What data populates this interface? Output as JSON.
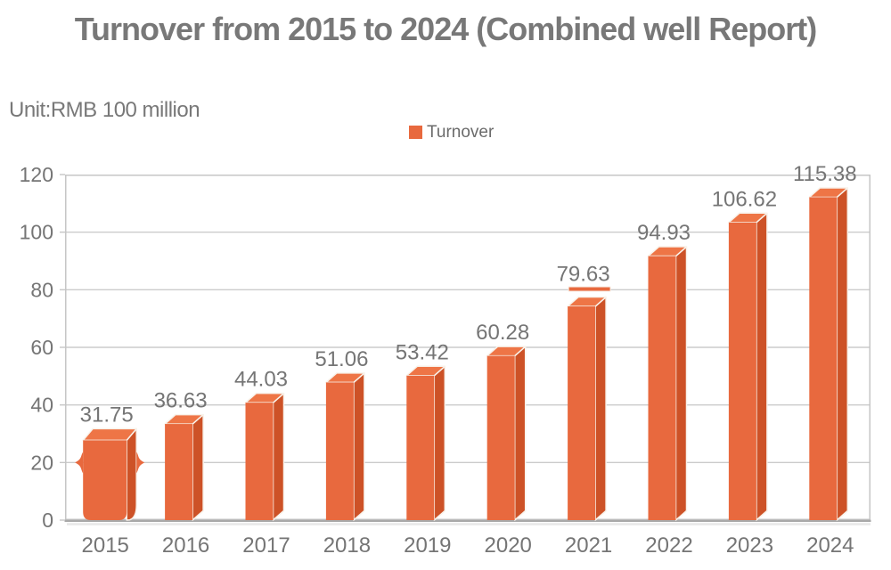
{
  "chart_data": {
    "type": "bar",
    "title": "Turnover from 2015 to 2024 (Combined well Report)",
    "unit_label": "Unit:RMB 100 million",
    "legend": {
      "label": "Turnover",
      "color": "#E8693E",
      "position": "top-center"
    },
    "categories": [
      "2015",
      "2016",
      "2017",
      "2018",
      "2019",
      "2020",
      "2021",
      "2022",
      "2023",
      "2024"
    ],
    "series": [
      {
        "name": "Turnover",
        "values": [
          31.75,
          36.63,
          44.03,
          51.06,
          53.42,
          60.28,
          79.63,
          94.93,
          106.62,
          115.38
        ]
      }
    ],
    "value_labels": [
      "31.75",
      "36.63",
      "44.03",
      "51.06",
      "53.42",
      "60.28",
      "79.63",
      "94.93",
      "106.62",
      "115.38"
    ],
    "xlabel": "",
    "ylabel": "",
    "ylim": [
      0,
      120
    ],
    "y_ticks": [
      0,
      20,
      40,
      60,
      80,
      100,
      120
    ],
    "grid": true,
    "bar_style": "3d",
    "colors": {
      "bar_front": "#E8693E",
      "bar_top": "#EE7546",
      "bar_side": "#CD5227",
      "face_stroke": "#F8F2EA",
      "grid": "#CBCBCB",
      "plot_border": "#C6C6C6",
      "axis_line": "#A9A9A9",
      "axis_shadow": "#D8D8D8",
      "title_text": "#787878",
      "label_text": "#757575",
      "legend_text": "#6B6B6B"
    }
  }
}
